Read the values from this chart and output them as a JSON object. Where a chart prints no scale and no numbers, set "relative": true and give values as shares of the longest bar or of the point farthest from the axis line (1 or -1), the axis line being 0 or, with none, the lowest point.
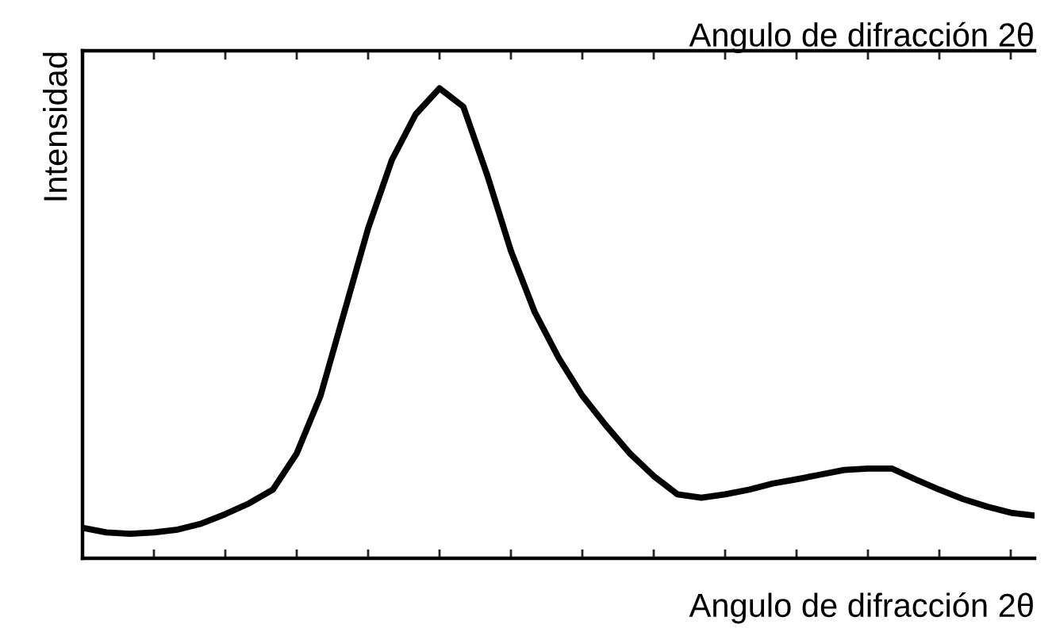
{
  "chart_data": {
    "type": "line",
    "relative": true,
    "xlabel": "Angulo de difracción 2θ",
    "x2label": "Angulo de difracción 2θ",
    "ylabel": "Intensidad",
    "categories": [
      null,
      null,
      null,
      null,
      null,
      null,
      null,
      null,
      null,
      null,
      null,
      null,
      null,
      null,
      null,
      null,
      null,
      null,
      null,
      null,
      null,
      null,
      null,
      null,
      null,
      null,
      null,
      null,
      null,
      null,
      null,
      null,
      null,
      null,
      null,
      null,
      null,
      null,
      null,
      null,
      null
    ],
    "series": [
      {
        "color": "#000000",
        "values": [
          0.065,
          0.055,
          0.052,
          0.055,
          0.061,
          0.074,
          0.094,
          0.117,
          0.146,
          0.223,
          0.346,
          0.524,
          0.702,
          0.848,
          0.945,
          1,
          0.961,
          0.816,
          0.654,
          0.524,
          0.427,
          0.346,
          0.282,
          0.223,
          0.175,
          0.136,
          0.129,
          0.136,
          0.146,
          0.159,
          0.168,
          0.178,
          0.188,
          0.191,
          0.191,
          0.168,
          0.146,
          0.126,
          0.11,
          0.097,
          0.091
        ]
      }
    ],
    "grid": false,
    "legend": false,
    "marker": "none",
    "line_style": "solid"
  }
}
